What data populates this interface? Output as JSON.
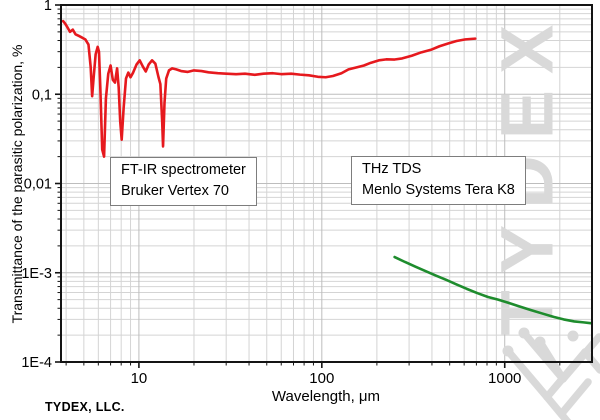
{
  "branding": {
    "watermark_text": "TYDEX",
    "company_label": "TYDEX, LLC."
  },
  "annotations": {
    "ftir_box": {
      "line1": "FT-IR spectrometer",
      "line2": "Bruker Vertex 70"
    },
    "thz_box": {
      "line1": "THz TDS",
      "line2": "Menlo Systems Tera K8"
    }
  },
  "colors": {
    "red_curve": "#e6191e",
    "green_curve": "#1e8c2d",
    "grid_minor": "#d4d4d4",
    "grid_major": "#bdbdbd",
    "axis": "#141414",
    "watermark": "#d9d9d9",
    "box_border": "#7d7d7d"
  },
  "chart_data": {
    "type": "line",
    "title": "",
    "xlabel": "Wavelength, μm",
    "ylabel": "Transmittance of the parasitic polarization, %",
    "x_scale": "log",
    "y_scale": "log",
    "xlim": [
      3.75,
      3000
    ],
    "ylim": [
      0.0001,
      1
    ],
    "grid": true,
    "legend_position": "none",
    "x_ticks": [
      {
        "v": 10,
        "label": "10"
      },
      {
        "v": 100,
        "label": "100"
      },
      {
        "v": 1000,
        "label": "1000"
      }
    ],
    "y_ticks": [
      {
        "v": 1,
        "label": "1"
      },
      {
        "v": 0.1,
        "label": "0,1"
      },
      {
        "v": 0.01,
        "label": "0,01"
      },
      {
        "v": 0.001,
        "label": "1E-3"
      },
      {
        "v": 0.0001,
        "label": "1E-4"
      }
    ],
    "series": [
      {
        "id": "ftir-curve",
        "name": "FT-IR spectrometer Bruker Vertex 70",
        "color": "#e6191e",
        "points": [
          [
            3.85,
            0.66
          ],
          [
            3.95,
            0.62
          ],
          [
            4.05,
            0.57
          ],
          [
            4.2,
            0.5
          ],
          [
            4.35,
            0.53
          ],
          [
            4.5,
            0.47
          ],
          [
            4.7,
            0.45
          ],
          [
            4.9,
            0.43
          ],
          [
            5.1,
            0.41
          ],
          [
            5.3,
            0.36
          ],
          [
            5.45,
            0.2
          ],
          [
            5.55,
            0.095
          ],
          [
            5.65,
            0.15
          ],
          [
            5.8,
            0.28
          ],
          [
            5.95,
            0.34
          ],
          [
            6.05,
            0.3
          ],
          [
            6.15,
            0.12
          ],
          [
            6.3,
            0.024
          ],
          [
            6.45,
            0.02
          ],
          [
            6.6,
            0.09
          ],
          [
            6.8,
            0.17
          ],
          [
            7.0,
            0.21
          ],
          [
            7.2,
            0.145
          ],
          [
            7.4,
            0.135
          ],
          [
            7.6,
            0.195
          ],
          [
            7.75,
            0.12
          ],
          [
            7.9,
            0.05
          ],
          [
            8.05,
            0.031
          ],
          [
            8.25,
            0.07
          ],
          [
            8.5,
            0.15
          ],
          [
            8.75,
            0.175
          ],
          [
            9.0,
            0.155
          ],
          [
            9.3,
            0.175
          ],
          [
            9.7,
            0.215
          ],
          [
            10.1,
            0.24
          ],
          [
            10.5,
            0.205
          ],
          [
            10.9,
            0.18
          ],
          [
            11.3,
            0.215
          ],
          [
            11.8,
            0.24
          ],
          [
            12.3,
            0.22
          ],
          [
            12.8,
            0.155
          ],
          [
            13.1,
            0.13
          ],
          [
            13.4,
            0.05
          ],
          [
            13.55,
            0.026
          ],
          [
            13.8,
            0.08
          ],
          [
            14.1,
            0.15
          ],
          [
            14.6,
            0.185
          ],
          [
            15.2,
            0.195
          ],
          [
            16,
            0.19
          ],
          [
            17,
            0.182
          ],
          [
            18.5,
            0.178
          ],
          [
            20,
            0.185
          ],
          [
            22,
            0.182
          ],
          [
            24,
            0.176
          ],
          [
            27,
            0.172
          ],
          [
            30,
            0.17
          ],
          [
            34,
            0.168
          ],
          [
            38,
            0.17
          ],
          [
            43,
            0.165
          ],
          [
            48,
            0.17
          ],
          [
            54,
            0.172
          ],
          [
            60,
            0.168
          ],
          [
            68,
            0.17
          ],
          [
            76,
            0.166
          ],
          [
            85,
            0.163
          ],
          [
            95,
            0.157
          ],
          [
            105,
            0.155
          ],
          [
            115,
            0.16
          ],
          [
            128,
            0.172
          ],
          [
            140,
            0.19
          ],
          [
            155,
            0.2
          ],
          [
            170,
            0.21
          ],
          [
            185,
            0.225
          ],
          [
            205,
            0.24
          ],
          [
            225,
            0.246
          ],
          [
            250,
            0.245
          ],
          [
            275,
            0.252
          ],
          [
            310,
            0.27
          ],
          [
            350,
            0.295
          ],
          [
            395,
            0.315
          ],
          [
            440,
            0.345
          ],
          [
            490,
            0.37
          ],
          [
            545,
            0.395
          ],
          [
            610,
            0.412
          ],
          [
            690,
            0.42
          ]
        ]
      },
      {
        "id": "thz-curve",
        "name": "THz TDS Menlo Systems Tera K8",
        "color": "#1e8c2d",
        "points": [
          [
            250,
            0.0015
          ],
          [
            285,
            0.00132
          ],
          [
            325,
            0.00117
          ],
          [
            370,
            0.00104
          ],
          [
            420,
            0.00093
          ],
          [
            480,
            0.00083
          ],
          [
            545,
            0.00074
          ],
          [
            620,
            0.00066
          ],
          [
            710,
            0.00059
          ],
          [
            810,
            0.000535
          ],
          [
            920,
            0.0005
          ],
          [
            1050,
            0.00046
          ],
          [
            1200,
            0.00042
          ],
          [
            1400,
            0.00038
          ],
          [
            1600,
            0.00035
          ],
          [
            1850,
            0.00032
          ],
          [
            2100,
            0.0003
          ],
          [
            2400,
            0.000285
          ],
          [
            2700,
            0.000278
          ],
          [
            2950,
            0.000272
          ]
        ]
      }
    ]
  }
}
